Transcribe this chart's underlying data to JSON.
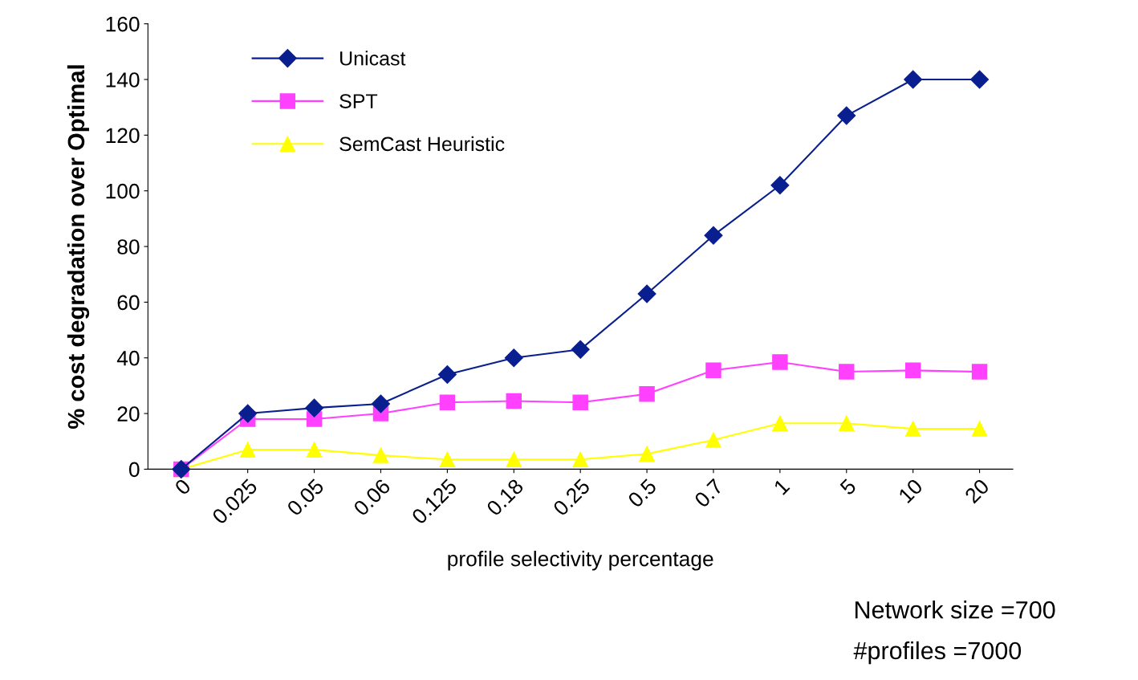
{
  "chart_data": {
    "type": "line",
    "xlabel": "profile selectivity percentage",
    "ylabel": "% cost degradation over Optimal",
    "categories": [
      "0",
      "0.025",
      "0.05",
      "0.06",
      "0.125",
      "0.18",
      "0.25",
      "0.5",
      "0.7",
      "1",
      "5",
      "10",
      "20"
    ],
    "series": [
      {
        "name": "Unicast",
        "color": "#0a1f8f",
        "marker": "diamond",
        "values": [
          0,
          20,
          22,
          23.5,
          34,
          40,
          43,
          63,
          84,
          102,
          127,
          140,
          140
        ]
      },
      {
        "name": "SPT",
        "color": "#ff40ff",
        "marker": "square",
        "values": [
          0,
          18,
          18,
          20,
          24,
          24.5,
          24,
          27,
          35.5,
          38.5,
          35,
          35.5,
          35
        ]
      },
      {
        "name": "SemCast Heuristic",
        "color": "#ffff00",
        "marker": "triangle",
        "values": [
          0,
          7,
          7,
          5,
          3.5,
          3.5,
          3.5,
          5.5,
          10.5,
          16.5,
          16.5,
          14.5,
          14.5
        ]
      }
    ],
    "ylim": [
      0,
      160
    ],
    "yticks": [
      0,
      20,
      40,
      60,
      80,
      100,
      120,
      140,
      160
    ],
    "grid": false,
    "legend": "top left",
    "line_style": "solid",
    "annotations": [
      "Network size =700",
      "#profiles =7000"
    ]
  }
}
